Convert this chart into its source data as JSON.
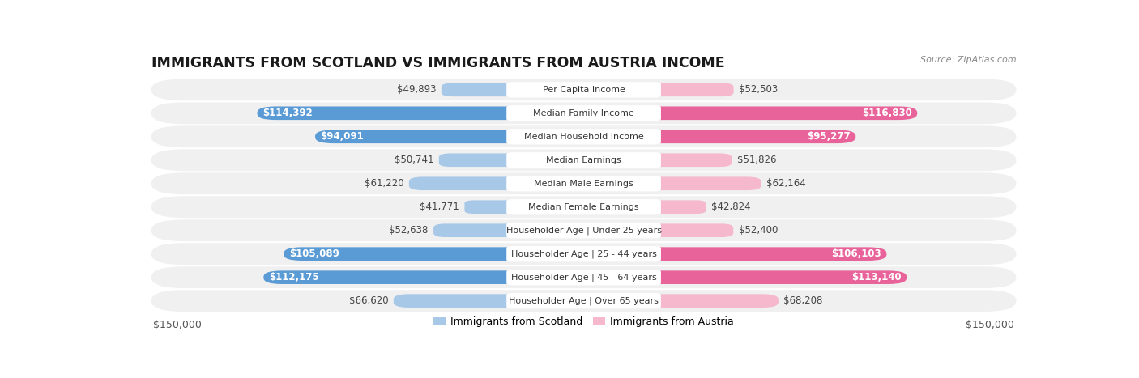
{
  "title": "IMMIGRANTS FROM SCOTLAND VS IMMIGRANTS FROM AUSTRIA INCOME",
  "source": "Source: ZipAtlas.com",
  "categories": [
    "Per Capita Income",
    "Median Family Income",
    "Median Household Income",
    "Median Earnings",
    "Median Male Earnings",
    "Median Female Earnings",
    "Householder Age | Under 25 years",
    "Householder Age | 25 - 44 years",
    "Householder Age | 45 - 64 years",
    "Householder Age | Over 65 years"
  ],
  "scotland_values": [
    49893,
    114392,
    94091,
    50741,
    61220,
    41771,
    52638,
    105089,
    112175,
    66620
  ],
  "austria_values": [
    52503,
    116830,
    95277,
    51826,
    62164,
    42824,
    52400,
    106103,
    113140,
    68208
  ],
  "scotland_color_light": "#a8c8e8",
  "scotland_color_dark": "#5b9bd5",
  "austria_color_light": "#f5b8cc",
  "austria_color_dark": "#e8639a",
  "max_value": 150000,
  "inside_threshold": 75000,
  "background_color": "#ffffff",
  "title_fontsize": 12.5,
  "label_fontsize": 8.5,
  "category_fontsize": 8,
  "legend_fontsize": 9,
  "source_fontsize": 8
}
